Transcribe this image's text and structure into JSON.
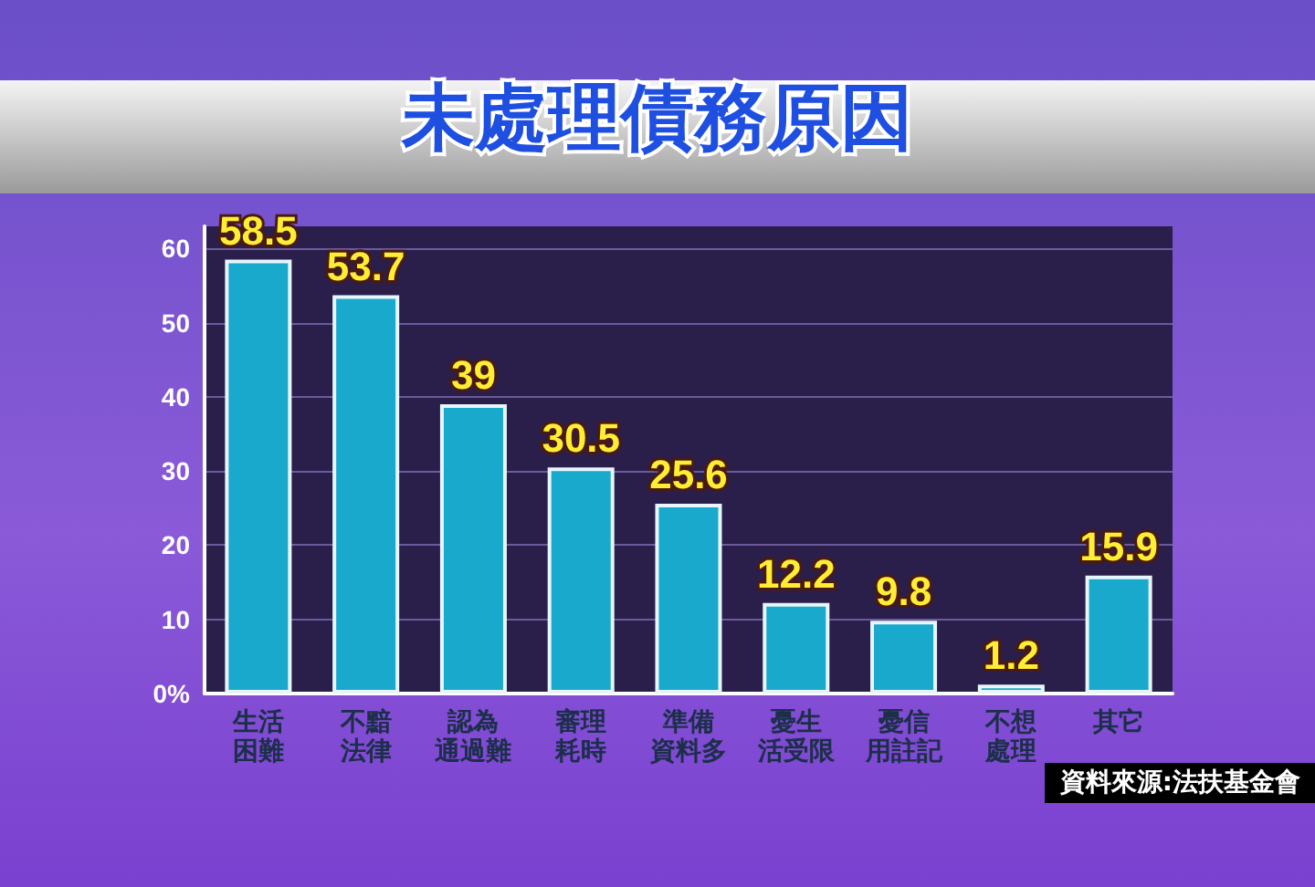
{
  "chart_data": {
    "type": "bar",
    "title": "未處理債務原因",
    "categories": [
      "生活困難",
      "不黯法律",
      "認為通過難",
      "審理耗時",
      "準備資料多",
      "憂生活受限",
      "憂信用註記",
      "不想處理",
      "其它"
    ],
    "values": [
      58.5,
      53.7,
      39,
      30.5,
      25.6,
      12.2,
      9.8,
      1.2,
      15.9
    ],
    "color": "#19a9cc",
    "ylim": [
      0,
      63
    ],
    "yticks": [
      {
        "value": 0,
        "label": "0%"
      },
      10,
      20,
      30,
      40,
      50,
      60
    ],
    "grid": "y",
    "data_labels": true,
    "annotations": [
      "資料來源:法扶基金會"
    ]
  }
}
